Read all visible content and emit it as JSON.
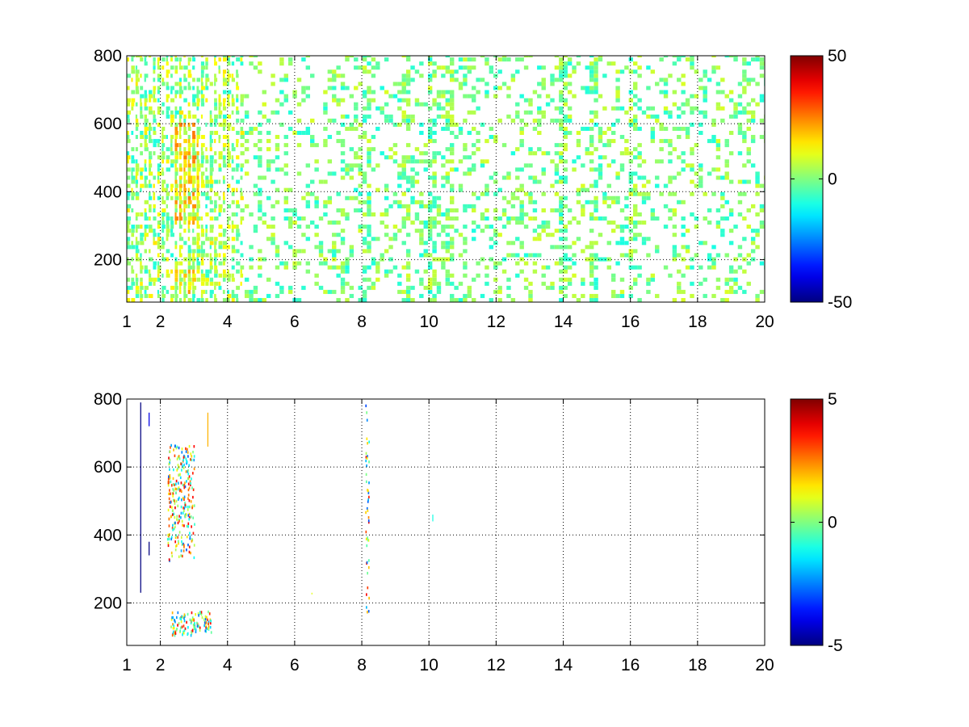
{
  "chart_data": [
    {
      "type": "heatmap",
      "title": "",
      "xlabel": "",
      "ylabel": "",
      "xlim": [
        1,
        20
      ],
      "ylim": [
        75,
        800
      ],
      "x_ticks": [
        1,
        2,
        4,
        6,
        8,
        10,
        12,
        14,
        16,
        18,
        20
      ],
      "y_ticks": [
        200,
        400,
        600,
        800
      ],
      "grid": true,
      "colormap": "jet",
      "colorbar": {
        "range": [
          -50,
          50
        ],
        "ticks": [
          50,
          0,
          -50
        ]
      },
      "cell_size": {
        "x": 0.13,
        "y": 12
      },
      "seed": 7,
      "description_regions": [
        {
          "x": [
            2.3,
            3.1
          ],
          "y": [
            300,
            600
          ],
          "values": "positive up to ~25",
          "density": 0.9
        },
        {
          "x": [
            2.4,
            3.0
          ],
          "y": [
            90,
            180
          ],
          "values": "positive up to ~25",
          "density": 0.9
        },
        {
          "x": [
            1,
            4.5
          ],
          "y": [
            75,
            800
          ],
          "values": "mixed -10 to 15",
          "density": 0.55
        },
        {
          "x": [
            4.5,
            20
          ],
          "y": [
            75,
            800
          ],
          "values": "mixed -10 to 10",
          "density": 0.25
        }
      ],
      "vertical_streaks": [
        8.1,
        9.2,
        10.0,
        10.5,
        14.0,
        14.8,
        16.0
      ]
    },
    {
      "type": "heatmap",
      "title": "",
      "xlabel": "",
      "ylabel": "",
      "xlim": [
        1,
        20
      ],
      "ylim": [
        75,
        800
      ],
      "x_ticks": [
        1,
        2,
        4,
        6,
        8,
        10,
        12,
        14,
        16,
        18,
        20
      ],
      "y_ticks": [
        200,
        400,
        600,
        800
      ],
      "grid": true,
      "colormap": "jet",
      "colorbar": {
        "range": [
          -5,
          5
        ],
        "ticks": [
          5,
          0,
          -5
        ]
      },
      "seed": 11,
      "points_regions": [
        {
          "x": [
            2.2,
            3.0
          ],
          "y": [
            320,
            660
          ],
          "values": "mixed -2 to 3",
          "count": 260
        },
        {
          "x": [
            2.3,
            3.5
          ],
          "y": [
            100,
            170
          ],
          "values": "mixed -3 to 4",
          "count": 120
        },
        {
          "x": [
            8.1,
            8.2
          ],
          "y": [
            160,
            790
          ],
          "values": "mixed -3 to 4",
          "count": 45
        }
      ],
      "isolated_marks": [
        {
          "x": 1.4,
          "y": [
            230,
            790
          ],
          "value": -5
        },
        {
          "x": 1.65,
          "y": [
            720,
            760
          ],
          "value": -4
        },
        {
          "x": 1.65,
          "y": [
            340,
            380
          ],
          "value": -5
        },
        {
          "x": 3.4,
          "y": [
            660,
            760
          ],
          "value": 2
        },
        {
          "x": 10.1,
          "y": [
            440,
            460
          ],
          "value": -1
        },
        {
          "x": 6.5,
          "y": [
            225,
            230
          ],
          "value": 1
        }
      ]
    }
  ]
}
